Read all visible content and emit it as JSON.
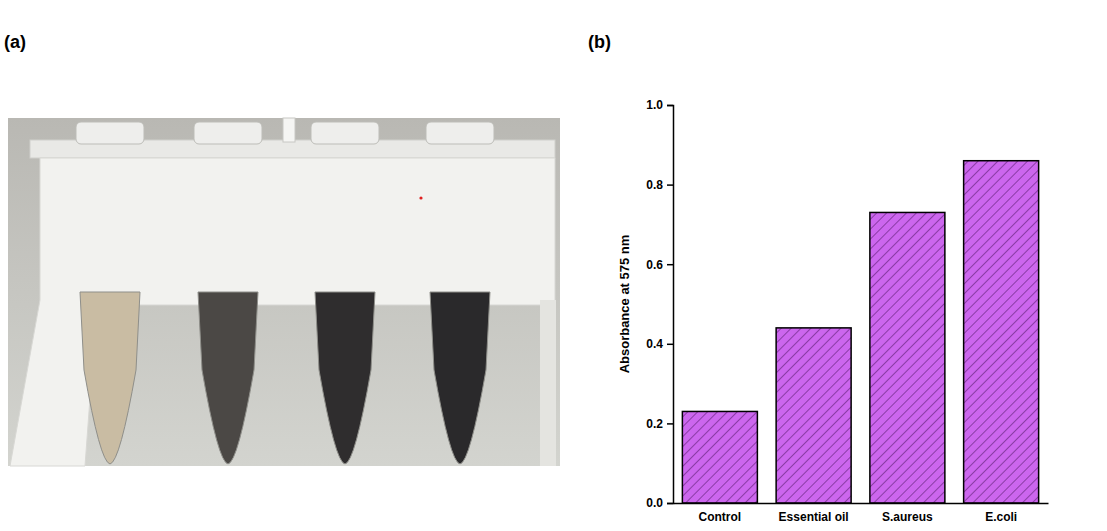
{
  "panel_labels": [
    "(a)",
    "(b)"
  ],
  "chart_data": {
    "type": "bar",
    "y_label": "Absorbance at 575 nm",
    "categories": [
      "Control",
      "Essential oil",
      "S.aureus",
      "E.coli"
    ],
    "values": [
      0.23,
      0.44,
      0.73,
      0.86
    ],
    "color": "#cc66ee",
    "ylim": [
      0,
      1.0
    ],
    "yticks": [
      {
        "value": 0,
        "label": "0.0"
      },
      0.2,
      0.4,
      0.6,
      0.8,
      {
        "value": 1.0,
        "label": "1.0"
      }
    ],
    "grid": false
  }
}
